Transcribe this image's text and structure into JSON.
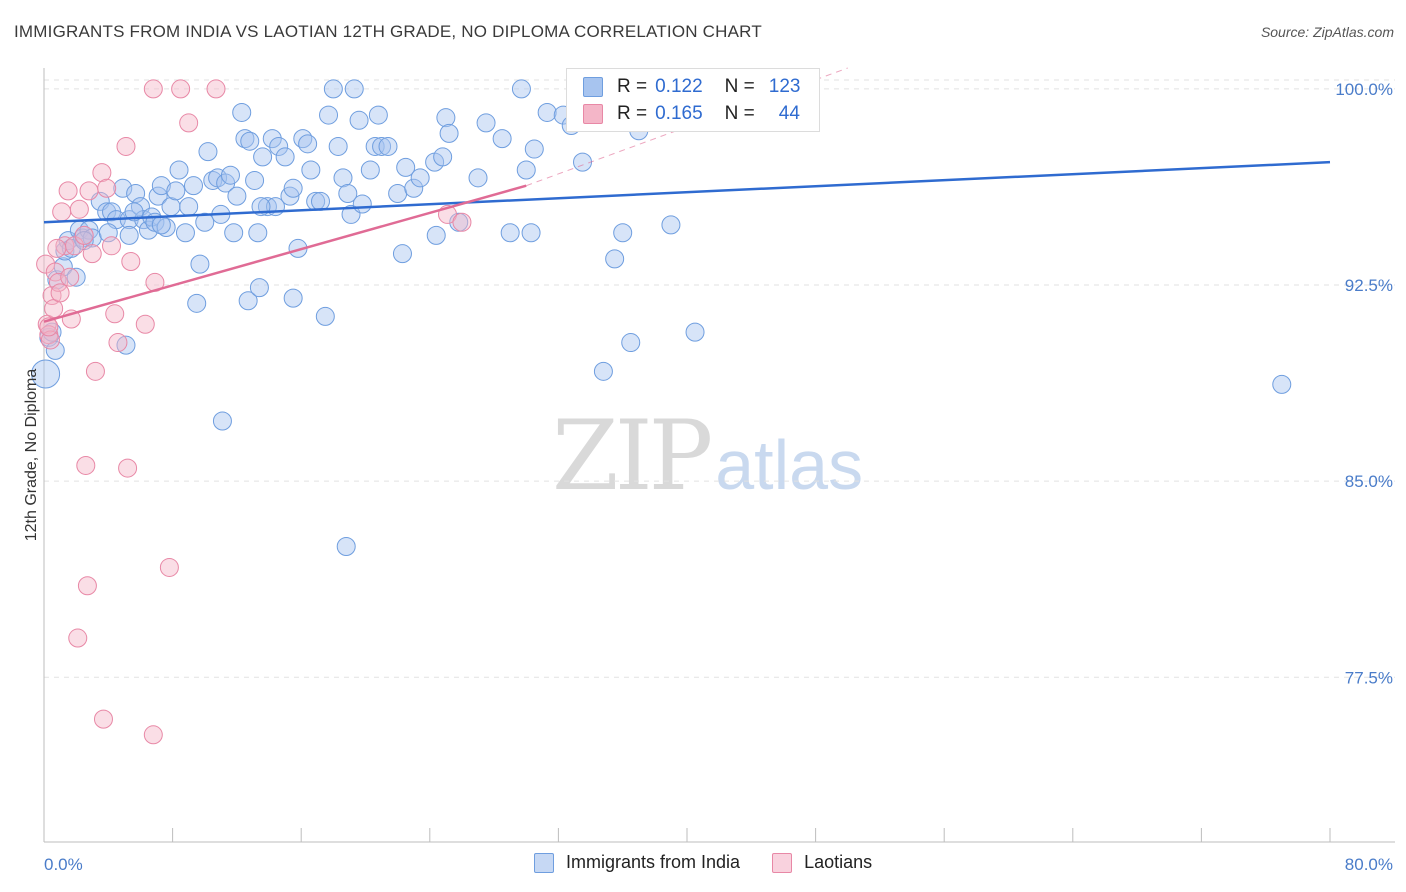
{
  "title": "IMMIGRANTS FROM INDIA VS LAOTIAN 12TH GRADE, NO DIPLOMA CORRELATION CHART",
  "source": "Source: ZipAtlas.com",
  "watermark": {
    "zip": "ZIP",
    "atlas": "atlas"
  },
  "legend": {
    "rows": [
      {
        "r_label": "R =",
        "r_value": "0.122",
        "n_label": "N =",
        "n_value": "123",
        "color": "#a7c4ef"
      },
      {
        "r_label": "R =",
        "r_value": "0.165",
        "n_label": "N =",
        "n_value": "44",
        "color": "#f4b6c8"
      }
    ]
  },
  "bottom_legend": [
    {
      "label": "Immigrants from India",
      "color": "#a7c4ef"
    },
    {
      "label": "Laotians",
      "color": "#f4b6c8"
    }
  ],
  "chart_data": {
    "type": "scatter",
    "title": "IMMIGRANTS FROM INDIA VS LAOTIAN 12TH GRADE, NO DIPLOMA CORRELATION CHART",
    "xlabel": "",
    "ylabel": "12th Grade, No Diploma",
    "xlim": [
      0,
      80
    ],
    "ylim": [
      71.2,
      100.8
    ],
    "x_ticks_labeled": [
      "0.0%",
      "80.0%"
    ],
    "y_ticks": [
      {
        "value": 100.0,
        "label": "100.0%"
      },
      {
        "value": 92.5,
        "label": "92.5%"
      },
      {
        "value": 85.0,
        "label": "85.0%"
      },
      {
        "value": 77.5,
        "label": "77.5%"
      }
    ],
    "grid": true,
    "legend_position": "top-center",
    "series": [
      {
        "name": "Immigrants from India",
        "color": "#a7c4ef",
        "stroke": "#6f9edf",
        "trend": {
          "x": [
            0,
            80
          ],
          "y": [
            94.9,
            97.2
          ],
          "color": "#2f6bd0"
        },
        "points": [
          [
            0.1,
            89.1
          ],
          [
            0.3,
            90.5
          ],
          [
            0.5,
            90.7
          ],
          [
            0.7,
            90.0
          ],
          [
            0.8,
            92.7
          ],
          [
            1.2,
            93.2
          ],
          [
            1.3,
            93.8
          ],
          [
            1.5,
            94.2
          ],
          [
            1.7,
            93.9
          ],
          [
            2.0,
            92.8
          ],
          [
            2.2,
            94.6
          ],
          [
            2.4,
            94.3
          ],
          [
            2.8,
            94.6
          ],
          [
            3.0,
            94.3
          ],
          [
            3.5,
            95.7
          ],
          [
            3.9,
            95.3
          ],
          [
            4.2,
            95.3
          ],
          [
            4.5,
            95.0
          ],
          [
            4.9,
            96.2
          ],
          [
            5.3,
            95.0
          ],
          [
            5.3,
            94.4
          ],
          [
            5.7,
            96.0
          ],
          [
            6.0,
            95.5
          ],
          [
            6.2,
            95.0
          ],
          [
            6.5,
            94.6
          ],
          [
            6.7,
            95.1
          ],
          [
            6.9,
            94.9
          ],
          [
            7.1,
            95.9
          ],
          [
            7.3,
            96.3
          ],
          [
            7.6,
            94.7
          ],
          [
            7.9,
            95.5
          ],
          [
            8.2,
            96.1
          ],
          [
            8.4,
            96.9
          ],
          [
            8.8,
            94.5
          ],
          [
            9.0,
            95.5
          ],
          [
            9.3,
            96.3
          ],
          [
            9.7,
            93.3
          ],
          [
            10.0,
            94.9
          ],
          [
            10.2,
            97.6
          ],
          [
            10.5,
            96.5
          ],
          [
            10.8,
            96.6
          ],
          [
            11.0,
            95.2
          ],
          [
            11.3,
            96.4
          ],
          [
            11.6,
            96.7
          ],
          [
            11.8,
            94.5
          ],
          [
            12.0,
            95.9
          ],
          [
            12.3,
            99.1
          ],
          [
            12.5,
            98.1
          ],
          [
            12.8,
            98.0
          ],
          [
            13.1,
            96.5
          ],
          [
            13.3,
            94.5
          ],
          [
            13.6,
            97.4
          ],
          [
            13.9,
            95.5
          ],
          [
            14.2,
            98.1
          ],
          [
            14.4,
            95.5
          ],
          [
            14.6,
            97.8
          ],
          [
            15.0,
            97.4
          ],
          [
            15.3,
            95.9
          ],
          [
            15.5,
            96.2
          ],
          [
            15.8,
            93.9
          ],
          [
            16.1,
            98.1
          ],
          [
            16.4,
            97.9
          ],
          [
            16.6,
            96.9
          ],
          [
            16.9,
            95.7
          ],
          [
            17.2,
            95.7
          ],
          [
            17.5,
            91.3
          ],
          [
            17.7,
            99.0
          ],
          [
            18.0,
            100.0
          ],
          [
            18.3,
            97.8
          ],
          [
            18.6,
            96.6
          ],
          [
            18.9,
            96.0
          ],
          [
            19.1,
            95.2
          ],
          [
            19.3,
            100.0
          ],
          [
            19.6,
            98.8
          ],
          [
            19.8,
            95.6
          ],
          [
            20.3,
            96.9
          ],
          [
            20.6,
            97.8
          ],
          [
            21.0,
            97.8
          ],
          [
            21.4,
            97.8
          ],
          [
            22.0,
            96.0
          ],
          [
            22.5,
            97.0
          ],
          [
            23.0,
            96.2
          ],
          [
            23.4,
            96.6
          ],
          [
            24.3,
            97.2
          ],
          [
            24.8,
            97.4
          ],
          [
            25.0,
            98.9
          ],
          [
            25.2,
            98.3
          ],
          [
            27.0,
            96.6
          ],
          [
            27.5,
            98.7
          ],
          [
            28.5,
            98.1
          ],
          [
            29.0,
            94.5
          ],
          [
            29.7,
            100.0
          ],
          [
            30.0,
            96.9
          ],
          [
            30.5,
            97.7
          ],
          [
            31.3,
            99.1
          ],
          [
            32.3,
            99.0
          ],
          [
            32.8,
            98.6
          ],
          [
            33.5,
            97.2
          ],
          [
            35.5,
            93.5
          ],
          [
            36.0,
            94.5
          ],
          [
            36.5,
            90.3
          ],
          [
            37.0,
            98.4
          ],
          [
            39.0,
            94.8
          ],
          [
            40.5,
            90.7
          ],
          [
            11.1,
            87.3
          ],
          [
            18.8,
            82.5
          ],
          [
            9.5,
            91.8
          ],
          [
            12.7,
            91.9
          ],
          [
            15.5,
            92.0
          ],
          [
            13.4,
            92.4
          ],
          [
            22.3,
            93.7
          ],
          [
            24.4,
            94.4
          ],
          [
            30.3,
            94.5
          ],
          [
            34.8,
            89.2
          ],
          [
            77.0,
            88.7
          ],
          [
            25.8,
            94.9
          ],
          [
            7.3,
            94.8
          ],
          [
            2.5,
            94.2
          ],
          [
            4.0,
            94.5
          ],
          [
            5.6,
            95.3
          ],
          [
            20.8,
            99.0
          ],
          [
            5.1,
            90.2
          ],
          [
            13.5,
            95.5
          ]
        ]
      },
      {
        "name": "Laotians",
        "color": "#f4b6c8",
        "stroke": "#e888a6",
        "trend": {
          "x": [
            0,
            30
          ],
          "y": [
            91.1,
            96.3
          ],
          "color": "#e06b95",
          "dashed_extension_to": [
            50,
            100.8
          ]
        },
        "points": [
          [
            0.1,
            93.3
          ],
          [
            0.2,
            91.0
          ],
          [
            0.3,
            90.6
          ],
          [
            0.4,
            90.4
          ],
          [
            0.5,
            92.1
          ],
          [
            0.6,
            91.6
          ],
          [
            0.7,
            93.0
          ],
          [
            0.9,
            92.6
          ],
          [
            1.0,
            92.2
          ],
          [
            1.1,
            95.3
          ],
          [
            1.3,
            94.0
          ],
          [
            1.5,
            96.1
          ],
          [
            1.7,
            91.2
          ],
          [
            1.9,
            94.0
          ],
          [
            2.2,
            95.4
          ],
          [
            2.5,
            94.4
          ],
          [
            2.8,
            96.1
          ],
          [
            3.2,
            89.2
          ],
          [
            3.6,
            96.8
          ],
          [
            3.9,
            96.2
          ],
          [
            4.2,
            94.0
          ],
          [
            4.4,
            91.4
          ],
          [
            4.6,
            90.3
          ],
          [
            5.1,
            97.8
          ],
          [
            5.4,
            93.4
          ],
          [
            6.3,
            91.0
          ],
          [
            6.8,
            100.0
          ],
          [
            6.9,
            92.6
          ],
          [
            8.5,
            100.0
          ],
          [
            9.0,
            98.7
          ],
          [
            10.7,
            100.0
          ],
          [
            25.1,
            95.2
          ],
          [
            26.0,
            94.9
          ],
          [
            2.6,
            85.6
          ],
          [
            5.2,
            85.5
          ],
          [
            7.8,
            81.7
          ],
          [
            2.7,
            81.0
          ],
          [
            2.1,
            79.0
          ],
          [
            3.7,
            75.9
          ],
          [
            6.8,
            75.3
          ],
          [
            0.3,
            90.9
          ],
          [
            1.6,
            92.8
          ],
          [
            3.0,
            93.7
          ],
          [
            0.8,
            93.9
          ]
        ]
      }
    ]
  }
}
